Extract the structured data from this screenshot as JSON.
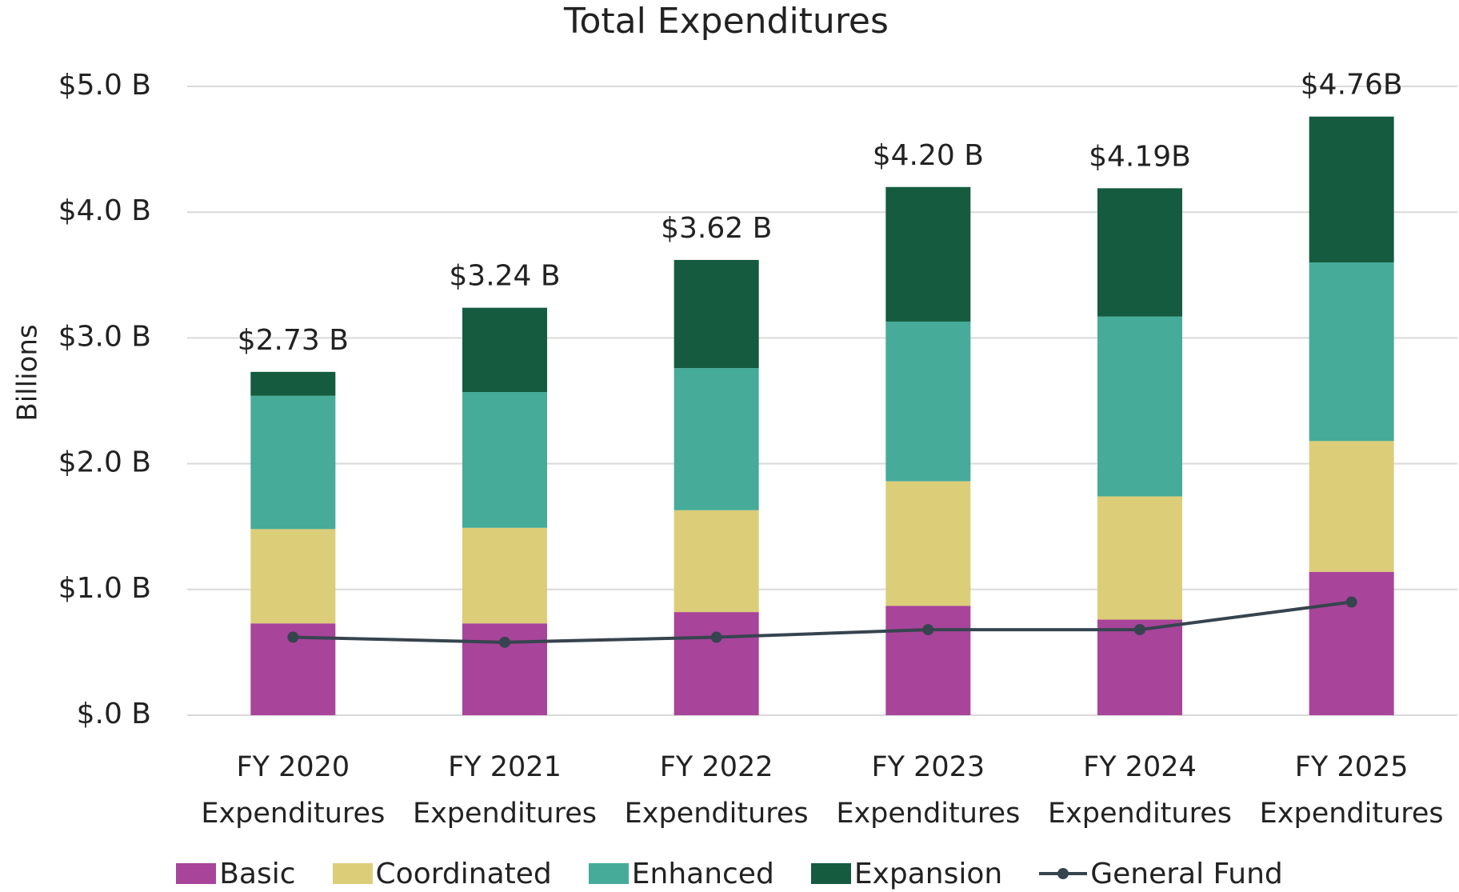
{
  "chart_data": {
    "type": "bar",
    "stacked": true,
    "title": "Total Expenditures",
    "y_label": "Billions",
    "categories": [
      "FY 2020 Expenditures",
      "FY 2021 Expenditures",
      "FY 2022 Expenditures",
      "FY 2023 Expenditures",
      "FY 2024 Expenditures",
      "FY 2025 Expenditures"
    ],
    "series": [
      {
        "name": "Basic",
        "color": "#a8449a",
        "values": [
          0.73,
          0.73,
          0.82,
          0.87,
          0.76,
          1.14
        ]
      },
      {
        "name": "Coordinated",
        "color": "#dccd78",
        "values": [
          0.75,
          0.76,
          0.81,
          0.99,
          0.98,
          1.04
        ]
      },
      {
        "name": "Enhanced",
        "color": "#46ab99",
        "values": [
          1.06,
          1.08,
          1.13,
          1.27,
          1.43,
          1.42
        ]
      },
      {
        "name": "Expansion",
        "color": "#145b3f",
        "values": [
          0.19,
          0.67,
          0.86,
          1.07,
          1.02,
          1.16
        ]
      },
      {
        "name": "General Fund",
        "type": "line",
        "color": "#36444f",
        "values": [
          0.62,
          0.58,
          0.62,
          0.68,
          0.68,
          0.9
        ]
      }
    ],
    "totals": {
      "values": [
        2.73,
        3.24,
        3.62,
        4.2,
        4.19,
        4.76
      ],
      "value_labels": [
        "$2.73 B",
        "$3.24 B",
        "$3.62 B",
        "$4.20 B",
        "$4.19B",
        "$4.76B"
      ]
    },
    "ylim": [
      0,
      5
    ],
    "yticks": [
      {
        "value": 0,
        "label": "$.0 B"
      },
      {
        "value": 1,
        "label": "$1.0 B"
      },
      {
        "value": 2,
        "label": "$2.0 B"
      },
      {
        "value": 3,
        "label": "$3.0 B"
      },
      {
        "value": 4,
        "label": "$4.0 B"
      },
      {
        "value": 5,
        "label": "$5.0 B"
      }
    ],
    "grid": true,
    "legend": "bottom"
  }
}
